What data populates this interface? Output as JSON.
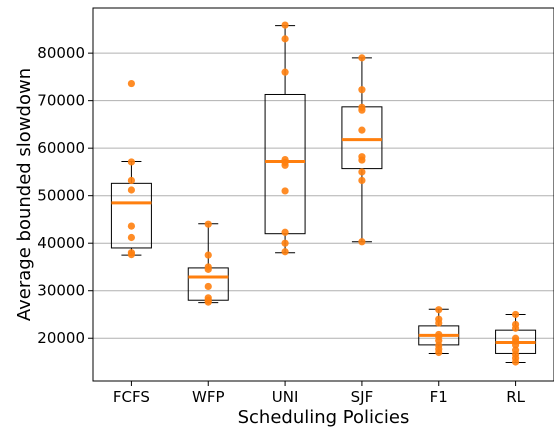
{
  "chart_data": {
    "type": "box",
    "title": "",
    "xlabel": "Scheduling Policies",
    "ylabel": "Average bounded slowdown",
    "ylim": [
      11000,
      89500
    ],
    "yticks": [
      20000,
      30000,
      40000,
      50000,
      60000,
      70000,
      80000
    ],
    "ytick_labels": [
      "20000",
      "30000",
      "40000",
      "50000",
      "60000",
      "70000",
      "80000"
    ],
    "grid": "horizontal",
    "colors": {
      "median": "#ff7f0e",
      "points": "#ff7f0e",
      "box": "#000000",
      "grid": "#b0b0b0"
    },
    "categories": [
      "FCFS",
      "WFP",
      "UNI",
      "SJF",
      "F1",
      "RL"
    ],
    "boxes": [
      {
        "label": "FCFS",
        "whislo": 37500,
        "q1": 39000,
        "med": 48500,
        "q3": 52600,
        "whishi": 57200,
        "points": [
          73600,
          57100,
          53200,
          51200,
          43600,
          41200,
          38000,
          37600
        ]
      },
      {
        "label": "WFP",
        "whislo": 27500,
        "q1": 28000,
        "med": 32900,
        "q3": 34800,
        "whishi": 44100,
        "points": [
          44000,
          37500,
          35000,
          34500,
          30900,
          28500,
          28000,
          27600
        ]
      },
      {
        "label": "UNI",
        "whislo": 38000,
        "q1": 42000,
        "med": 57200,
        "q3": 71300,
        "whishi": 85800,
        "points": [
          85900,
          83000,
          76000,
          57600,
          57000,
          56400,
          51000,
          42300,
          40000,
          38200
        ]
      },
      {
        "label": "SJF",
        "whislo": 40300,
        "q1": 55700,
        "med": 61800,
        "q3": 68700,
        "whishi": 79000,
        "points": [
          79000,
          72300,
          68600,
          68000,
          63800,
          58200,
          57500,
          55000,
          53200,
          40300
        ]
      },
      {
        "label": "F1",
        "whislo": 16800,
        "q1": 18600,
        "med": 20600,
        "q3": 22600,
        "whishi": 26100,
        "points": [
          26000,
          24000,
          23200,
          20800,
          20300,
          19500,
          18500,
          17700,
          17000
        ]
      },
      {
        "label": "RL",
        "whislo": 14900,
        "q1": 16800,
        "med": 19100,
        "q3": 21700,
        "whishi": 25000,
        "points": [
          25000,
          22900,
          22100,
          20000,
          19400,
          18600,
          17500,
          16600,
          15800,
          15000
        ]
      }
    ]
  }
}
